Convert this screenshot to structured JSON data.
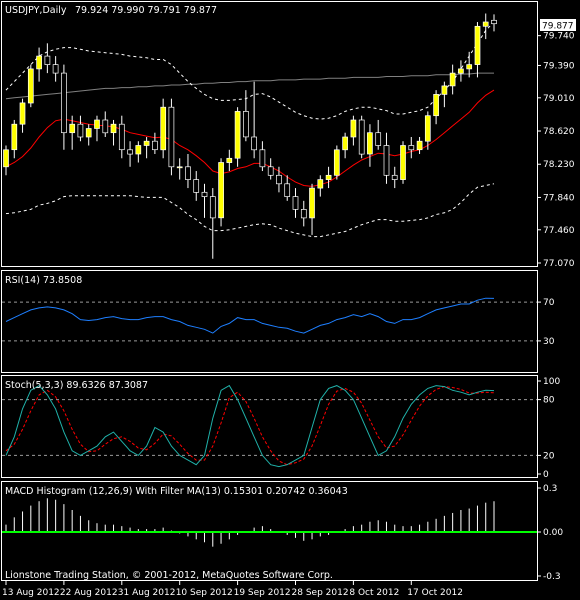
{
  "colors": {
    "background": "#000000",
    "frame": "#ffffff",
    "bull_candle": "#ffff00",
    "bear_candle": "#000000",
    "candle_outline": "#ffffff",
    "ma_red": "#ff0000",
    "ma_long": "#808080",
    "bands": "#ffffff",
    "rsi_line": "#1e7fff",
    "stoch_main": "#20b2aa",
    "stoch_signal": "#ff0000",
    "macd_hist": "#ffffff",
    "macd_zero": "#00ff00",
    "level_lines": "#9a9a9a"
  },
  "header": {
    "title": "USDJPY,Daily",
    "ohlc": "79.924 79.990 79.791 79.877"
  },
  "price_badge": "79.877",
  "copyright": "Lionstone Trading Station, © 2001-2012, MetaQuotes Software Corp.",
  "chart_data": [
    {
      "type": "candlestick",
      "title": "USDJPY,Daily",
      "subtitle": "79.924 79.990 79.791 79.877",
      "ylim": [
        77.07,
        80.1
      ],
      "y_ticks": [
        "79.740",
        "79.390",
        "79.010",
        "78.620",
        "78.230",
        "77.840",
        "77.460",
        "77.070"
      ],
      "x_ticks": [
        "13 Aug 2012",
        "22 Aug 2012",
        "31 Aug 2012",
        "10 Sep 2012",
        "19 Sep 2012",
        "28 Sep 2012",
        "8 Oct 2012",
        "17 Oct 2012"
      ],
      "last_price": "79.877",
      "candles": [
        {
          "o": 78.2,
          "h": 78.45,
          "l": 78.1,
          "c": 78.4
        },
        {
          "o": 78.4,
          "h": 78.75,
          "l": 78.3,
          "c": 78.7
        },
        {
          "o": 78.7,
          "h": 79.0,
          "l": 78.6,
          "c": 78.95
        },
        {
          "o": 78.95,
          "h": 79.4,
          "l": 78.9,
          "c": 79.35
        },
        {
          "o": 79.35,
          "h": 79.6,
          "l": 79.2,
          "c": 79.5
        },
        {
          "o": 79.5,
          "h": 79.65,
          "l": 79.3,
          "c": 79.4
        },
        {
          "o": 79.4,
          "h": 79.5,
          "l": 79.2,
          "c": 79.3
        },
        {
          "o": 79.3,
          "h": 79.4,
          "l": 78.4,
          "c": 78.6
        },
        {
          "o": 78.6,
          "h": 78.8,
          "l": 78.4,
          "c": 78.7
        },
        {
          "o": 78.7,
          "h": 78.8,
          "l": 78.5,
          "c": 78.55
        },
        {
          "o": 78.55,
          "h": 78.7,
          "l": 78.45,
          "c": 78.65
        },
        {
          "o": 78.65,
          "h": 78.8,
          "l": 78.5,
          "c": 78.75
        },
        {
          "o": 78.75,
          "h": 78.85,
          "l": 78.55,
          "c": 78.6
        },
        {
          "o": 78.6,
          "h": 78.75,
          "l": 78.45,
          "c": 78.7
        },
        {
          "o": 78.7,
          "h": 78.8,
          "l": 78.3,
          "c": 78.4
        },
        {
          "o": 78.4,
          "h": 78.5,
          "l": 78.2,
          "c": 78.35
        },
        {
          "o": 78.35,
          "h": 78.5,
          "l": 78.25,
          "c": 78.45
        },
        {
          "o": 78.45,
          "h": 78.55,
          "l": 78.3,
          "c": 78.5
        },
        {
          "o": 78.5,
          "h": 78.6,
          "l": 78.35,
          "c": 78.4
        },
        {
          "o": 78.4,
          "h": 79.0,
          "l": 78.3,
          "c": 78.9
        },
        {
          "o": 78.9,
          "h": 79.0,
          "l": 78.1,
          "c": 78.2
        },
        {
          "o": 78.2,
          "h": 78.3,
          "l": 78.05,
          "c": 78.2
        },
        {
          "o": 78.2,
          "h": 78.35,
          "l": 77.95,
          "c": 78.05
        },
        {
          "o": 78.05,
          "h": 78.15,
          "l": 77.8,
          "c": 77.9
        },
        {
          "o": 77.9,
          "h": 78.0,
          "l": 77.6,
          "c": 77.85
        },
        {
          "o": 77.85,
          "h": 77.95,
          "l": 77.12,
          "c": 77.6
        },
        {
          "o": 77.6,
          "h": 78.3,
          "l": 77.5,
          "c": 78.25
        },
        {
          "o": 78.25,
          "h": 78.4,
          "l": 78.15,
          "c": 78.3
        },
        {
          "o": 78.3,
          "h": 78.9,
          "l": 78.2,
          "c": 78.85
        },
        {
          "o": 78.85,
          "h": 79.1,
          "l": 78.5,
          "c": 78.55
        },
        {
          "o": 78.55,
          "h": 79.2,
          "l": 78.3,
          "c": 78.4
        },
        {
          "o": 78.4,
          "h": 78.5,
          "l": 78.15,
          "c": 78.2
        },
        {
          "o": 78.2,
          "h": 78.3,
          "l": 78.05,
          "c": 78.1
        },
        {
          "o": 78.1,
          "h": 78.2,
          "l": 77.9,
          "c": 78.0
        },
        {
          "o": 78.0,
          "h": 78.1,
          "l": 77.8,
          "c": 77.85
        },
        {
          "o": 77.85,
          "h": 77.95,
          "l": 77.6,
          "c": 77.7
        },
        {
          "o": 77.7,
          "h": 77.8,
          "l": 77.5,
          "c": 77.6
        },
        {
          "o": 77.6,
          "h": 78.0,
          "l": 77.4,
          "c": 77.95
        },
        {
          "o": 77.95,
          "h": 78.1,
          "l": 77.85,
          "c": 78.05
        },
        {
          "o": 78.05,
          "h": 78.2,
          "l": 77.95,
          "c": 78.1
        },
        {
          "o": 78.1,
          "h": 78.45,
          "l": 78.05,
          "c": 78.4
        },
        {
          "o": 78.4,
          "h": 78.6,
          "l": 78.3,
          "c": 78.55
        },
        {
          "o": 78.55,
          "h": 78.8,
          "l": 78.45,
          "c": 78.75
        },
        {
          "o": 78.75,
          "h": 78.8,
          "l": 78.3,
          "c": 78.35
        },
        {
          "o": 78.35,
          "h": 78.7,
          "l": 78.2,
          "c": 78.6
        },
        {
          "o": 78.6,
          "h": 78.75,
          "l": 78.4,
          "c": 78.45
        },
        {
          "o": 78.45,
          "h": 78.6,
          "l": 78.0,
          "c": 78.1
        },
        {
          "o": 78.1,
          "h": 78.2,
          "l": 77.95,
          "c": 78.05
        },
        {
          "o": 78.05,
          "h": 78.5,
          "l": 78.0,
          "c": 78.45
        },
        {
          "o": 78.45,
          "h": 78.55,
          "l": 78.3,
          "c": 78.4
        },
        {
          "o": 78.4,
          "h": 78.55,
          "l": 78.35,
          "c": 78.5
        },
        {
          "o": 78.5,
          "h": 78.85,
          "l": 78.4,
          "c": 78.8
        },
        {
          "o": 78.8,
          "h": 79.1,
          "l": 78.7,
          "c": 79.05
        },
        {
          "o": 79.05,
          "h": 79.2,
          "l": 78.9,
          "c": 79.15
        },
        {
          "o": 79.15,
          "h": 79.4,
          "l": 79.05,
          "c": 79.3
        },
        {
          "o": 79.3,
          "h": 79.45,
          "l": 79.2,
          "c": 79.35
        },
        {
          "o": 79.35,
          "h": 79.55,
          "l": 79.25,
          "c": 79.4
        },
        {
          "o": 79.4,
          "h": 79.9,
          "l": 79.25,
          "c": 79.85
        },
        {
          "o": 79.85,
          "h": 80.0,
          "l": 79.7,
          "c": 79.9
        },
        {
          "o": 79.92,
          "h": 79.99,
          "l": 79.79,
          "c": 79.88
        }
      ],
      "ma_red": [
        78.2,
        78.25,
        78.32,
        78.42,
        78.55,
        78.66,
        78.74,
        78.76,
        78.74,
        78.72,
        78.7,
        78.69,
        78.68,
        78.67,
        78.64,
        78.6,
        78.58,
        78.56,
        78.54,
        78.55,
        78.52,
        78.45,
        78.4,
        78.33,
        78.25,
        78.15,
        78.12,
        78.14,
        78.18,
        78.2,
        78.24,
        78.24,
        78.2,
        78.15,
        78.08,
        78.02,
        77.98,
        77.97,
        77.99,
        78.02,
        78.08,
        78.15,
        78.22,
        78.28,
        78.32,
        78.36,
        78.35,
        78.33,
        78.35,
        78.38,
        78.4,
        78.45,
        78.52,
        78.6,
        78.68,
        78.76,
        78.84,
        78.95,
        79.04,
        79.1
      ],
      "ma_long": [
        79.0,
        79.01,
        79.02,
        79.03,
        79.04,
        79.05,
        79.06,
        79.07,
        79.08,
        79.09,
        79.1,
        79.11,
        79.12,
        79.12,
        79.13,
        79.13,
        79.14,
        79.14,
        79.15,
        79.15,
        79.16,
        79.16,
        79.17,
        79.17,
        79.18,
        79.18,
        79.19,
        79.19,
        79.2,
        79.2,
        79.21,
        79.21,
        79.21,
        79.22,
        79.22,
        79.22,
        79.23,
        79.23,
        79.23,
        79.24,
        79.24,
        79.24,
        79.25,
        79.25,
        79.25,
        79.25,
        79.26,
        79.26,
        79.26,
        79.27,
        79.27,
        79.27,
        79.28,
        79.28,
        79.28,
        79.29,
        79.29,
        79.3,
        79.3,
        79.3
      ],
      "band_upper": [
        79.1,
        79.2,
        79.3,
        79.4,
        79.5,
        79.55,
        79.58,
        79.6,
        79.6,
        79.58,
        79.56,
        79.55,
        79.54,
        79.53,
        79.52,
        79.5,
        79.49,
        79.48,
        79.46,
        79.46,
        79.4,
        79.3,
        79.2,
        79.12,
        79.05,
        79.0,
        78.98,
        78.98,
        78.99,
        79.0,
        79.05,
        79.06,
        79.02,
        78.96,
        78.9,
        78.84,
        78.8,
        78.77,
        78.76,
        78.77,
        78.8,
        78.85,
        78.88,
        78.9,
        78.9,
        78.88,
        78.86,
        78.82,
        78.82,
        78.84,
        78.86,
        78.9,
        79.0,
        79.1,
        79.2,
        79.35,
        79.5,
        79.65,
        79.8,
        79.9
      ],
      "band_lower": [
        77.65,
        77.66,
        77.68,
        77.7,
        77.75,
        77.77,
        77.8,
        77.85,
        77.86,
        77.86,
        77.86,
        77.86,
        77.86,
        77.86,
        77.86,
        77.86,
        77.85,
        77.84,
        77.84,
        77.84,
        77.78,
        77.72,
        77.64,
        77.58,
        77.5,
        77.45,
        77.45,
        77.46,
        77.48,
        77.5,
        77.52,
        77.53,
        77.52,
        77.48,
        77.45,
        77.42,
        77.4,
        77.38,
        77.38,
        77.4,
        77.42,
        77.44,
        77.48,
        77.52,
        77.55,
        77.58,
        77.58,
        77.56,
        77.56,
        77.57,
        77.58,
        77.6,
        77.64,
        77.66,
        77.7,
        77.78,
        77.88,
        77.96,
        77.98,
        78.0
      ],
      "grid": false
    },
    {
      "type": "line",
      "title": "RSI(14) 73.8508",
      "ylim": [
        0,
        100
      ],
      "levels": [
        70,
        30
      ],
      "y_ticks": [
        "70",
        "30"
      ],
      "series": [
        {
          "name": "RSI(14)",
          "values": [
            50,
            54,
            58,
            62,
            64,
            65,
            64,
            62,
            58,
            52,
            51,
            52,
            54,
            55,
            53,
            52,
            52,
            54,
            55,
            55,
            52,
            50,
            46,
            44,
            42,
            38,
            45,
            48,
            54,
            52,
            52,
            48,
            46,
            44,
            43,
            40,
            38,
            42,
            46,
            48,
            52,
            54,
            57,
            55,
            58,
            55,
            50,
            48,
            52,
            52,
            54,
            58,
            62,
            64,
            66,
            68,
            68,
            72,
            74,
            73.8508
          ]
        }
      ],
      "grid": false
    },
    {
      "type": "line",
      "title": "Stoch(5,3,3) 89.6326 87.3087",
      "ylim": [
        0,
        100
      ],
      "levels": [
        80,
        20
      ],
      "y_ticks": [
        "100",
        "80",
        "20",
        "0"
      ],
      "series": [
        {
          "name": "Stoch(5,3,3)",
          "values": [
            20,
            40,
            70,
            90,
            95,
            85,
            70,
            45,
            25,
            20,
            25,
            30,
            40,
            45,
            35,
            25,
            20,
            30,
            50,
            45,
            30,
            20,
            15,
            10,
            20,
            60,
            90,
            95,
            80,
            60,
            40,
            20,
            10,
            8,
            10,
            15,
            20,
            50,
            80,
            92,
            95,
            90,
            80,
            60,
            40,
            20,
            25,
            40,
            60,
            75,
            85,
            92,
            95,
            94,
            90,
            88,
            85,
            88,
            90,
            89.6326
          ]
        },
        {
          "name": "Signal",
          "values": [
            25,
            32,
            48,
            68,
            85,
            90,
            83,
            68,
            48,
            32,
            24,
            25,
            32,
            38,
            40,
            35,
            28,
            26,
            33,
            43,
            41,
            32,
            22,
            15,
            15,
            30,
            55,
            82,
            88,
            78,
            60,
            40,
            25,
            14,
            10,
            12,
            16,
            30,
            52,
            75,
            89,
            92,
            88,
            76,
            58,
            40,
            28,
            30,
            42,
            58,
            73,
            84,
            91,
            94,
            93,
            91,
            87,
            87,
            88,
            87.3087
          ]
        }
      ],
      "grid": false
    },
    {
      "type": "bar",
      "title": "MACD Histogram (12,26,9) With Filter MA(13) 0.15301 0.20742 0.36043",
      "ylim": [
        -0.3,
        0.3
      ],
      "y_ticks": [
        "0.3",
        "0.00",
        "-0.3"
      ],
      "series": [
        {
          "name": "MACD Histogram",
          "values": [
            0.05,
            0.1,
            0.14,
            0.18,
            0.21,
            0.23,
            0.22,
            0.19,
            0.15,
            0.11,
            0.08,
            0.06,
            0.05,
            0.05,
            0.04,
            0.03,
            0.02,
            0.02,
            0.02,
            0.03,
            0.01,
            -0.01,
            -0.03,
            -0.05,
            -0.07,
            -0.1,
            -0.08,
            -0.05,
            -0.02,
            0.0,
            0.03,
            0.04,
            0.02,
            0.0,
            -0.02,
            -0.04,
            -0.06,
            -0.05,
            -0.03,
            -0.02,
            0.0,
            0.02,
            0.04,
            0.05,
            0.07,
            0.08,
            0.07,
            0.05,
            0.04,
            0.04,
            0.05,
            0.07,
            0.09,
            0.11,
            0.13,
            0.15,
            0.16,
            0.18,
            0.2,
            0.21
          ]
        }
      ],
      "grid": false
    }
  ]
}
